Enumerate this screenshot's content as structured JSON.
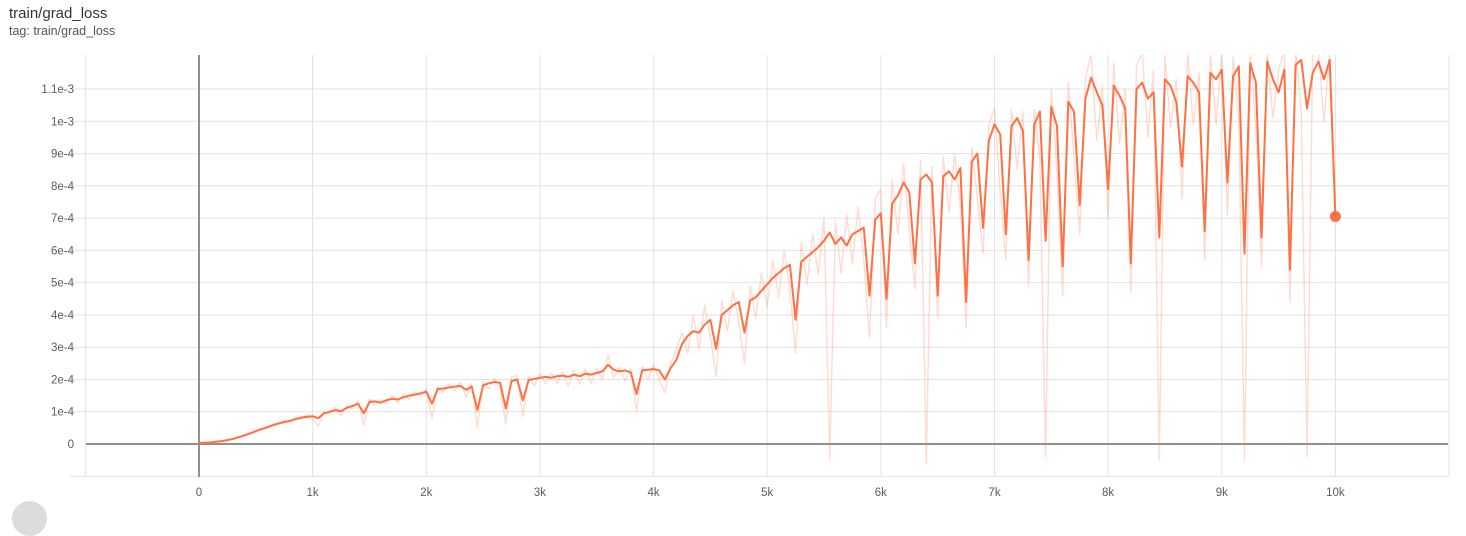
{
  "header": {
    "title": "train/grad_loss",
    "subtitle": "tag: train/grad_loss"
  },
  "colors": {
    "accent": "#ff7043",
    "grid_light": "#e3e3e3",
    "axis_dark": "#8f8f8f",
    "tick_label": "#5c5c5c"
  },
  "footer": {
    "action_button_icon": "circle-button-icon"
  },
  "chart_data": {
    "type": "line",
    "title": "train/grad_loss",
    "xlabel": "",
    "ylabel": "",
    "grid": true,
    "legend": "none",
    "value_unit": "1e-4",
    "x_range": [
      -1000,
      11000
    ],
    "y_range_e4": [
      -1.02,
      12.05
    ],
    "x_ticks": [
      {
        "v": 0,
        "label": "0"
      },
      {
        "v": 1000,
        "label": "1k"
      },
      {
        "v": 2000,
        "label": "2k"
      },
      {
        "v": 3000,
        "label": "3k"
      },
      {
        "v": 4000,
        "label": "4k"
      },
      {
        "v": 5000,
        "label": "5k"
      },
      {
        "v": 6000,
        "label": "6k"
      },
      {
        "v": 7000,
        "label": "7k"
      },
      {
        "v": 8000,
        "label": "8k"
      },
      {
        "v": 9000,
        "label": "9k"
      },
      {
        "v": 10000,
        "label": "10k"
      }
    ],
    "x_edge_lines": [
      -1000,
      11000
    ],
    "y_ticks": [
      {
        "v": 0,
        "label": "0"
      },
      {
        "v": 1,
        "label": "1e-4"
      },
      {
        "v": 2,
        "label": "2e-4"
      },
      {
        "v": 3,
        "label": "3e-4"
      },
      {
        "v": 4,
        "label": "4e-4"
      },
      {
        "v": 5,
        "label": "5e-4"
      },
      {
        "v": 6,
        "label": "6e-4"
      },
      {
        "v": 7,
        "label": "7e-4"
      },
      {
        "v": 8,
        "label": "8e-4"
      },
      {
        "v": 9,
        "label": "9e-4"
      },
      {
        "v": 10,
        "label": "1e-3"
      },
      {
        "v": 11,
        "label": "1.1e-3"
      }
    ],
    "y_edge_lines": [
      -1
    ],
    "final_point": {
      "step": 10000,
      "value_e4": 7.05
    },
    "series": [
      {
        "name": "raw",
        "role": "unsmoothed",
        "color": "#ff7043",
        "opacity": 0.25,
        "width": 1.4,
        "start_step": 0,
        "step_interval": 50,
        "values_e4": [
          0.03,
          0.05,
          0.04,
          0.08,
          0.08,
          0.14,
          0.14,
          0.24,
          0.24,
          0.37,
          0.36,
          0.5,
          0.48,
          0.63,
          0.58,
          0.74,
          0.66,
          0.84,
          0.75,
          0.92,
          0.78,
          0.55,
          1.02,
          0.9,
          1.14,
          0.88,
          1.2,
          1.08,
          1.35,
          0.58,
          1.4,
          1.22,
          1.38,
          1.26,
          1.5,
          1.28,
          1.56,
          1.38,
          1.62,
          1.46,
          1.72,
          0.78,
          1.8,
          1.6,
          1.86,
          1.64,
          1.92,
          1.45,
          1.88,
          0.5,
          1.95,
          1.7,
          2.05,
          1.68,
          0.62,
          2.08,
          2.12,
          0.85,
          2.1,
          1.8,
          2.18,
          1.85,
          2.2,
          1.88,
          2.25,
          1.8,
          2.3,
          1.85,
          2.32,
          1.88,
          2.35,
          2.0,
          2.75,
          2.05,
          2.38,
          1.95,
          2.35,
          1.0,
          2.42,
          2.0,
          2.45,
          1.98,
          1.6,
          2.48,
          2.95,
          3.45,
          2.8,
          4.0,
          2.95,
          4.3,
          3.3,
          2.1,
          4.45,
          3.5,
          4.75,
          3.75,
          2.5,
          4.9,
          3.9,
          5.3,
          4.25,
          5.7,
          4.55,
          6.0,
          4.75,
          2.8,
          6.25,
          4.95,
          6.5,
          5.25,
          7.0,
          -0.5,
          6.9,
          5.3,
          7.1,
          5.6,
          7.35,
          5.7,
          3.3,
          7.6,
          7.9,
          3.6,
          8.2,
          6.5,
          8.7,
          6.6,
          4.8,
          8.8,
          -0.6,
          8.6,
          3.9,
          8.9,
          7.2,
          9.0,
          7.4,
          3.6,
          9.2,
          7.6,
          5.9,
          9.9,
          10.4,
          7.8,
          5.7,
          10.4,
          8.5,
          10.3,
          4.9,
          10.4,
          8.8,
          -0.4,
          11.0,
          8.4,
          4.6,
          11.2,
          8.9,
          6.5,
          11.3,
          12.1,
          9.4,
          11.1,
          7.0,
          11.8,
          9.3,
          11.0,
          4.7,
          11.7,
          12.15,
          9.5,
          11.6,
          -0.5,
          12.1,
          9.8,
          11.3,
          7.6,
          12.15,
          9.9,
          11.5,
          5.7,
          12.1,
          9.9,
          12.2,
          7.1,
          12.0,
          10.0,
          -0.5,
          12.2,
          9.8,
          5.5,
          12.2,
          10.1,
          11.6,
          12.2,
          4.4,
          12.2,
          10.3,
          -0.4,
          12.1,
          12.2,
          10.0,
          12.2,
          7.05
        ]
      },
      {
        "name": "smoothed",
        "role": "smoothed",
        "color": "#ff7043",
        "opacity": 1,
        "width": 2,
        "start_step": 0,
        "step_interval": 50,
        "values_e4": [
          0.03,
          0.04,
          0.05,
          0.07,
          0.09,
          0.12,
          0.16,
          0.21,
          0.27,
          0.33,
          0.4,
          0.46,
          0.52,
          0.58,
          0.64,
          0.68,
          0.72,
          0.77,
          0.82,
          0.84,
          0.86,
          0.8,
          0.95,
          1.0,
          1.05,
          1.02,
          1.12,
          1.18,
          1.25,
          0.95,
          1.3,
          1.32,
          1.28,
          1.36,
          1.4,
          1.38,
          1.45,
          1.5,
          1.53,
          1.57,
          1.62,
          1.25,
          1.7,
          1.72,
          1.75,
          1.78,
          1.8,
          1.68,
          1.78,
          1.05,
          1.82,
          1.88,
          1.92,
          1.9,
          1.1,
          1.95,
          2.0,
          1.35,
          1.98,
          2.02,
          2.05,
          2.08,
          2.05,
          2.1,
          2.12,
          2.08,
          2.15,
          2.1,
          2.18,
          2.15,
          2.2,
          2.25,
          2.45,
          2.3,
          2.25,
          2.28,
          2.22,
          1.55,
          2.28,
          2.3,
          2.32,
          2.28,
          2.0,
          2.35,
          2.6,
          3.1,
          3.35,
          3.5,
          3.45,
          3.7,
          3.85,
          2.95,
          4.0,
          4.15,
          4.3,
          4.4,
          3.45,
          4.45,
          4.55,
          4.75,
          4.95,
          5.15,
          5.3,
          5.45,
          5.55,
          3.85,
          5.65,
          5.8,
          5.95,
          6.1,
          6.3,
          6.55,
          6.2,
          6.4,
          6.15,
          6.5,
          6.6,
          6.7,
          4.6,
          6.95,
          7.15,
          4.5,
          7.45,
          7.7,
          8.1,
          7.8,
          5.6,
          8.2,
          8.35,
          8.1,
          4.6,
          8.3,
          8.45,
          8.2,
          8.55,
          4.4,
          8.75,
          9.0,
          6.7,
          9.4,
          9.9,
          9.6,
          6.5,
          9.85,
          10.1,
          9.7,
          5.7,
          9.9,
          10.3,
          6.3,
          10.45,
          9.85,
          5.5,
          10.6,
          10.3,
          7.4,
          10.7,
          11.35,
          10.9,
          10.5,
          7.9,
          11.1,
          10.8,
          10.4,
          5.6,
          11.0,
          11.2,
          10.7,
          10.9,
          6.4,
          11.3,
          11.1,
          10.6,
          8.6,
          11.4,
          11.2,
          10.9,
          6.6,
          11.5,
          11.3,
          11.6,
          8.1,
          11.4,
          11.7,
          5.9,
          11.8,
          11.2,
          6.4,
          11.85,
          11.3,
          10.9,
          11.6,
          5.4,
          11.75,
          11.9,
          10.4,
          11.5,
          11.85,
          11.3,
          11.9,
          7.05
        ]
      }
    ]
  }
}
